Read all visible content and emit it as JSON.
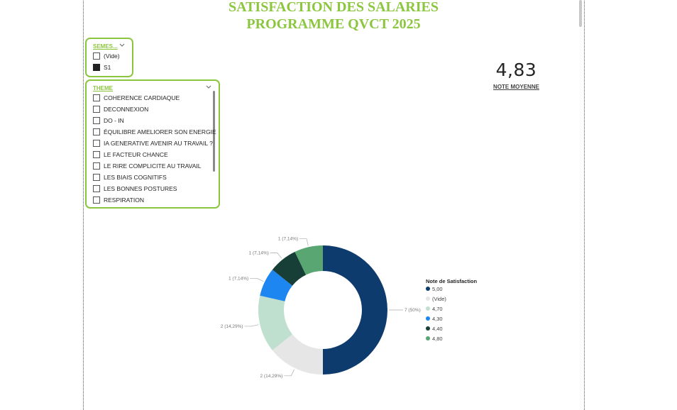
{
  "report": {
    "title_line1": "SATISFACTION DES SALARIES",
    "title_line2": "PROGRAMME QVCT 2025"
  },
  "slicer_semestre": {
    "header": "SEMES...",
    "items": [
      {
        "label": "(Vide)",
        "checked": false
      },
      {
        "label": "S1",
        "checked": true
      }
    ]
  },
  "slicer_theme": {
    "header": "THEME",
    "items": [
      {
        "label": "COHERENCE CARDIAQUE",
        "checked": false
      },
      {
        "label": "DECONNEXION",
        "checked": false
      },
      {
        "label": "DO - IN",
        "checked": false
      },
      {
        "label": "ÉQUILIBRE AMELIORER SON ENERGIE",
        "checked": false
      },
      {
        "label": "IA GENERATIVE AVENIR AU TRAVAIL ?",
        "checked": false
      },
      {
        "label": "LE FACTEUR CHANCE",
        "checked": false
      },
      {
        "label": "LE RIRE COMPLICITE AU TRAVAIL",
        "checked": false
      },
      {
        "label": "LES BIAIS COGNITIFS",
        "checked": false
      },
      {
        "label": "LES BONNES POSTURES",
        "checked": false
      },
      {
        "label": "RESPIRATION",
        "checked": false
      }
    ]
  },
  "kpi": {
    "value": "4,83",
    "label": "NOTE MOYENNE"
  },
  "chart_data": {
    "type": "pie",
    "subtype": "donut",
    "legend_title": "Note de Satisfaction",
    "legend_position": "right",
    "categories": [
      "5,00",
      "(Vide)",
      "4,70",
      "4,30",
      "4,40",
      "4,80"
    ],
    "values": [
      7,
      2,
      2,
      1,
      1,
      1
    ],
    "labels": [
      "7 (50%)",
      "2 (14,29%)",
      "2 (14,29%)",
      "1 (7,14%)",
      "1 (7,14%)",
      "1 (7,14%)"
    ],
    "colors": [
      "#0d3b6e",
      "#e6e6e6",
      "#bfdfcf",
      "#1e86f0",
      "#173f37",
      "#5aa672"
    ]
  }
}
